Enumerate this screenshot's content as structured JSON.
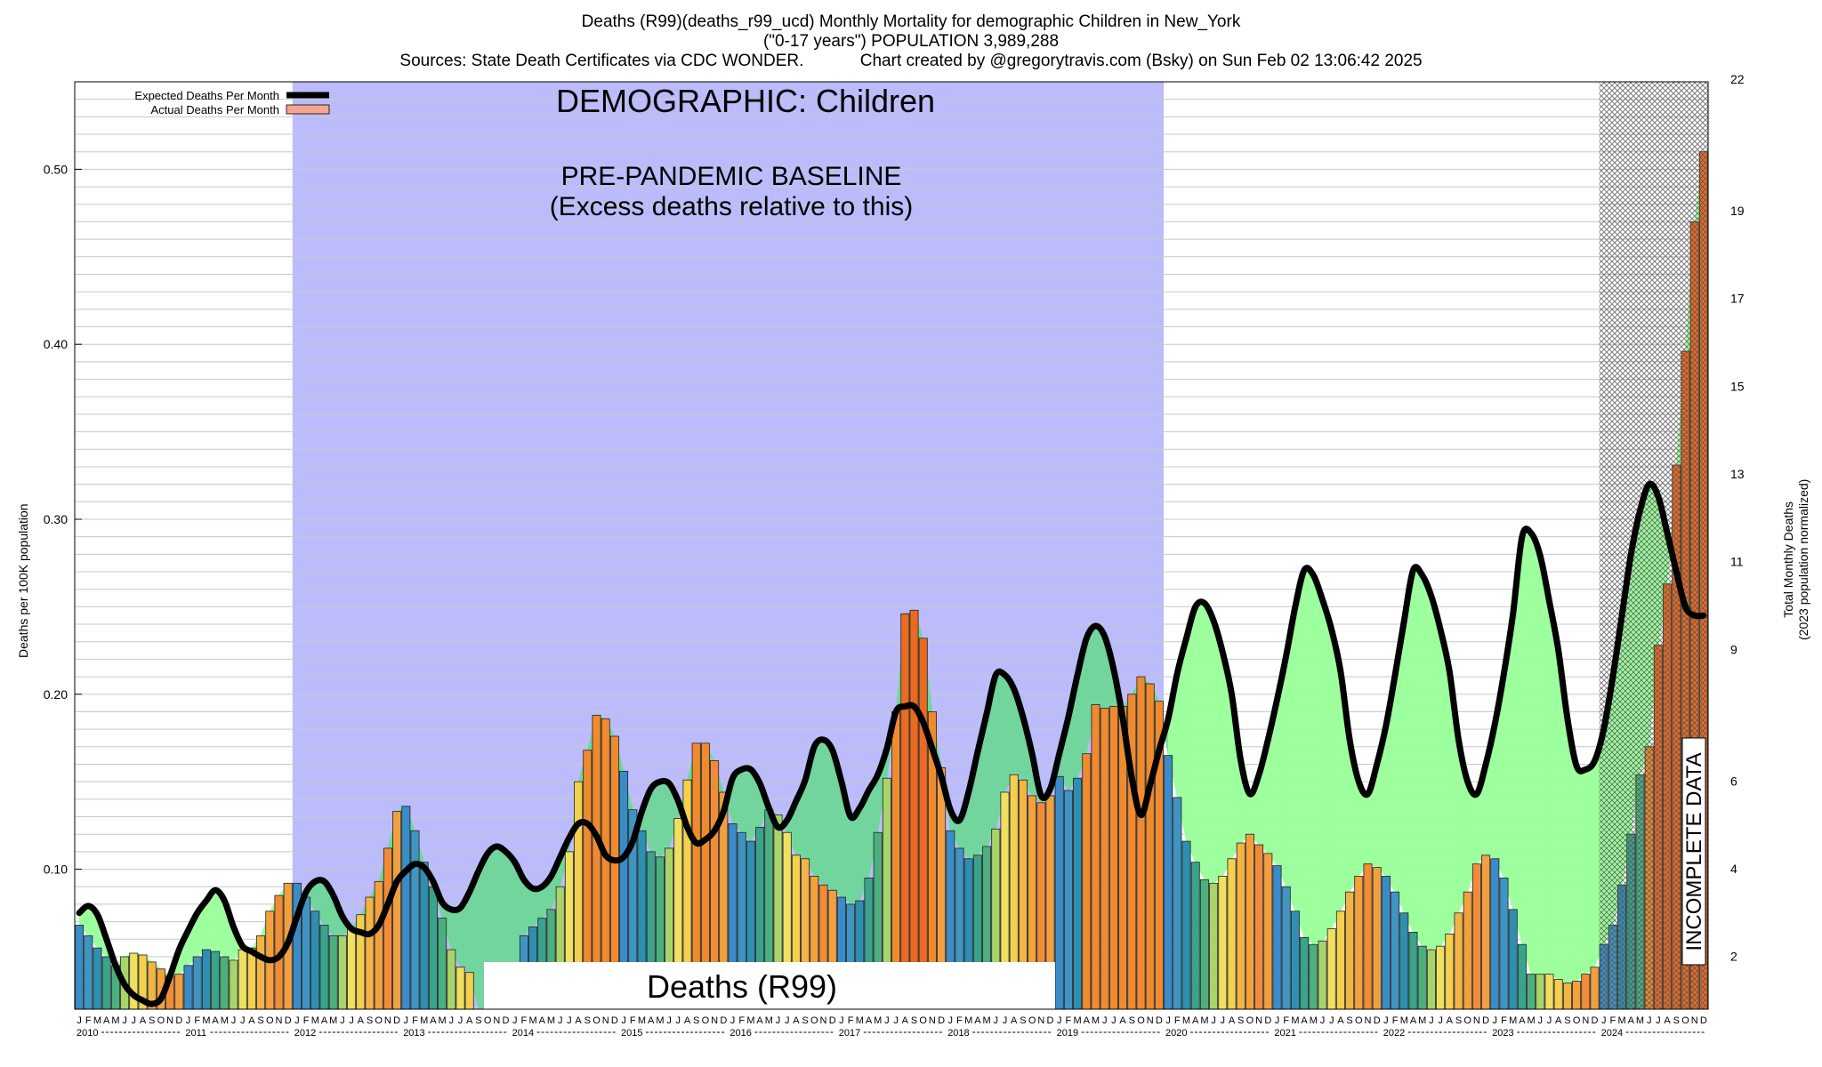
{
  "title": {
    "line1": "Deaths (R99)(deaths_r99_ucd) Monthly Mortality for demographic Children in New_York",
    "line2": "(\"0-17 years\") POPULATION 3,989,288",
    "line3": "Sources: State Death Certificates via CDC WONDER.            Chart created by @gregorytravis.com (Bsky) on Sun Feb 02 13:06:42 2025"
  },
  "chart_data": {
    "type": "bar",
    "ylabel_left": "Deaths per 100K population",
    "ylabel_right_1": "Total Monthly Deaths",
    "ylabel_right_2": "(2023 population normalized)",
    "ylim": [
      0.02,
      0.55
    ],
    "yticks_left": [
      "0.10",
      "0.20",
      "0.30",
      "0.40",
      "0.50"
    ],
    "yticks_right": [
      "2",
      "4",
      "6",
      "9",
      "11",
      "13",
      "15",
      "17",
      "19",
      "22"
    ],
    "month_letters": [
      "J",
      "F",
      "M",
      "A",
      "M",
      "J",
      "J",
      "A",
      "S",
      "O",
      "N",
      "D"
    ],
    "years": [
      "2010",
      "2011",
      "2012",
      "2013",
      "2014",
      "2015",
      "2016",
      "2017",
      "2018",
      "2019",
      "2020",
      "2021",
      "2022",
      "2023",
      "2024"
    ],
    "legend": {
      "expected": "Expected Deaths Per Month",
      "actual": "Actual Deaths Per Month"
    },
    "annotations": {
      "demographic": "DEMOGRAPHIC: Children",
      "baseline_1": "PRE-PANDEMIC BASELINE",
      "baseline_2": "(Excess deaths relative to this)",
      "cause": "Deaths (R99)",
      "incomplete": "INCOMPLETE DATA"
    },
    "baseline_period": [
      "2012-01",
      "2019-12"
    ],
    "incomplete_period": [
      "2024-01",
      "2024-12"
    ],
    "colors": {
      "baseline": "#bcbcfc",
      "excess_fill": "#99ff99",
      "deficit_fill": "#6fd79a",
      "expected_line": "#000000"
    },
    "series": [
      {
        "name": "Actual Deaths Per Month",
        "values": [
          0.068,
          0.062,
          0.055,
          0.05,
          0.045,
          0.05,
          0.052,
          0.051,
          0.047,
          0.043,
          0.039,
          0.04,
          0.045,
          0.05,
          0.054,
          0.053,
          0.05,
          0.048,
          0.054,
          0.055,
          0.062,
          0.076,
          0.085,
          0.092,
          0.092,
          0.084,
          0.076,
          0.068,
          0.062,
          0.062,
          0.066,
          0.074,
          0.084,
          0.093,
          0.112,
          0.133,
          0.136,
          0.122,
          0.104,
          0.09,
          0.072,
          0.054,
          0.044,
          0.041,
          0.012,
          0.012,
          0.012,
          0.012,
          0.012,
          0.062,
          0.067,
          0.072,
          0.077,
          0.09,
          0.11,
          0.15,
          0.168,
          0.188,
          0.186,
          0.176,
          0.156,
          0.134,
          0.122,
          0.11,
          0.107,
          0.112,
          0.129,
          0.151,
          0.172,
          0.172,
          0.162,
          0.144,
          0.126,
          0.121,
          0.116,
          0.124,
          0.134,
          0.131,
          0.121,
          0.108,
          0.106,
          0.096,
          0.091,
          0.088,
          0.084,
          0.08,
          0.082,
          0.095,
          0.121,
          0.152,
          0.19,
          0.246,
          0.248,
          0.232,
          0.19,
          0.158,
          0.122,
          0.112,
          0.106,
          0.108,
          0.113,
          0.123,
          0.144,
          0.154,
          0.151,
          0.142,
          0.138,
          0.142,
          0.153,
          0.145,
          0.152,
          0.166,
          0.194,
          0.192,
          0.193,
          0.193,
          0.2,
          0.21,
          0.206,
          0.196,
          0.165,
          0.141,
          0.116,
          0.104,
          0.094,
          0.092,
          0.096,
          0.106,
          0.115,
          0.12,
          0.114,
          0.109,
          0.102,
          0.09,
          0.076,
          0.061,
          0.057,
          0.059,
          0.066,
          0.076,
          0.087,
          0.096,
          0.103,
          0.101,
          0.096,
          0.087,
          0.075,
          0.064,
          0.056,
          0.054,
          0.056,
          0.063,
          0.075,
          0.087,
          0.103,
          0.108,
          0.106,
          0.095,
          0.077,
          0.057,
          0.04,
          0.04,
          0.04,
          0.037,
          0.035,
          0.036,
          0.04,
          0.044,
          0.057,
          0.068,
          0.091,
          0.12,
          0.154,
          0.17,
          0.228,
          0.263,
          0.331,
          0.396,
          0.47,
          0.51
        ]
      },
      {
        "name": "Expected Deaths Per Month",
        "values": [
          0.075,
          0.079,
          0.074,
          0.06,
          0.045,
          0.034,
          0.028,
          0.025,
          0.023,
          0.026,
          0.039,
          0.054,
          0.065,
          0.075,
          0.082,
          0.088,
          0.082,
          0.067,
          0.056,
          0.053,
          0.05,
          0.048,
          0.05,
          0.058,
          0.073,
          0.087,
          0.093,
          0.093,
          0.085,
          0.073,
          0.066,
          0.064,
          0.063,
          0.068,
          0.08,
          0.093,
          0.099,
          0.103,
          0.101,
          0.093,
          0.081,
          0.077,
          0.078,
          0.087,
          0.099,
          0.109,
          0.113,
          0.11,
          0.104,
          0.094,
          0.089,
          0.09,
          0.096,
          0.107,
          0.118,
          0.126,
          0.126,
          0.119,
          0.108,
          0.105,
          0.107,
          0.116,
          0.133,
          0.146,
          0.15,
          0.149,
          0.139,
          0.124,
          0.115,
          0.117,
          0.122,
          0.133,
          0.152,
          0.157,
          0.157,
          0.149,
          0.135,
          0.124,
          0.128,
          0.139,
          0.151,
          0.17,
          0.174,
          0.168,
          0.15,
          0.13,
          0.135,
          0.145,
          0.154,
          0.169,
          0.19,
          0.193,
          0.193,
          0.184,
          0.169,
          0.153,
          0.134,
          0.128,
          0.144,
          0.167,
          0.189,
          0.211,
          0.211,
          0.203,
          0.187,
          0.166,
          0.142,
          0.146,
          0.166,
          0.187,
          0.211,
          0.232,
          0.239,
          0.233,
          0.214,
          0.186,
          0.152,
          0.131,
          0.148,
          0.168,
          0.186,
          0.212,
          0.232,
          0.25,
          0.252,
          0.242,
          0.224,
          0.2,
          0.162,
          0.143,
          0.154,
          0.174,
          0.197,
          0.222,
          0.25,
          0.271,
          0.268,
          0.254,
          0.237,
          0.213,
          0.174,
          0.15,
          0.143,
          0.16,
          0.182,
          0.211,
          0.242,
          0.271,
          0.268,
          0.256,
          0.237,
          0.213,
          0.174,
          0.15,
          0.143,
          0.16,
          0.183,
          0.212,
          0.246,
          0.29,
          0.292,
          0.279,
          0.253,
          0.225,
          0.186,
          0.159,
          0.157,
          0.162,
          0.18,
          0.21,
          0.245,
          0.28,
          0.305,
          0.32,
          0.313,
          0.292,
          0.27,
          0.25,
          0.245,
          0.245
        ]
      }
    ]
  }
}
